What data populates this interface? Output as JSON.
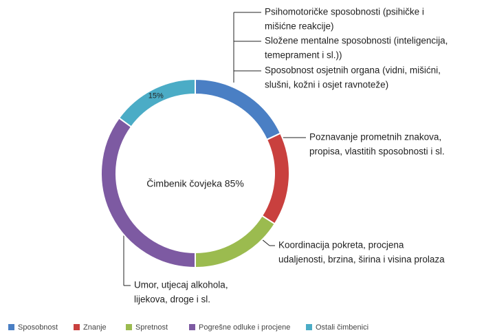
{
  "chart_data": {
    "type": "pie",
    "donut": true,
    "categories": [
      "Sposobnost",
      "Znanje",
      "Spretnost",
      "Pogrešne odluke i procjene",
      "Ostali čimbenici"
    ],
    "values": [
      18,
      16,
      16,
      35,
      15
    ],
    "value_labels": [
      null,
      null,
      null,
      null,
      "15%"
    ],
    "colors": [
      "#4a7fc4",
      "#c9403e",
      "#9bbb4f",
      "#7d5aa2",
      "#4bacc6"
    ],
    "center_label": "Čimbenik čovjeka 85%",
    "legend": "bottom",
    "annotations": [
      [
        "Psihomotoričke sposobnosti (psihičke i",
        "mišićne reakcije)"
      ],
      [
        "Složene mentalne sposobnosti (inteligencija,",
        "temeprament i sl.))"
      ],
      [
        "Sposobnost osjetnih organa (vidni, mišićni,",
        "slušni, kožni i osjet ravnoteže)"
      ],
      [
        "Poznavanje prometnih znakova,",
        "propisa, vlastitih sposobnosti i sl."
      ],
      [
        "Koordinacija pokreta, procjena",
        "udaljenosti, brzina, širina i visina prolaza"
      ],
      [
        "Umor, utjecaj alkohola,",
        "lijekova, droge i sl."
      ]
    ]
  }
}
